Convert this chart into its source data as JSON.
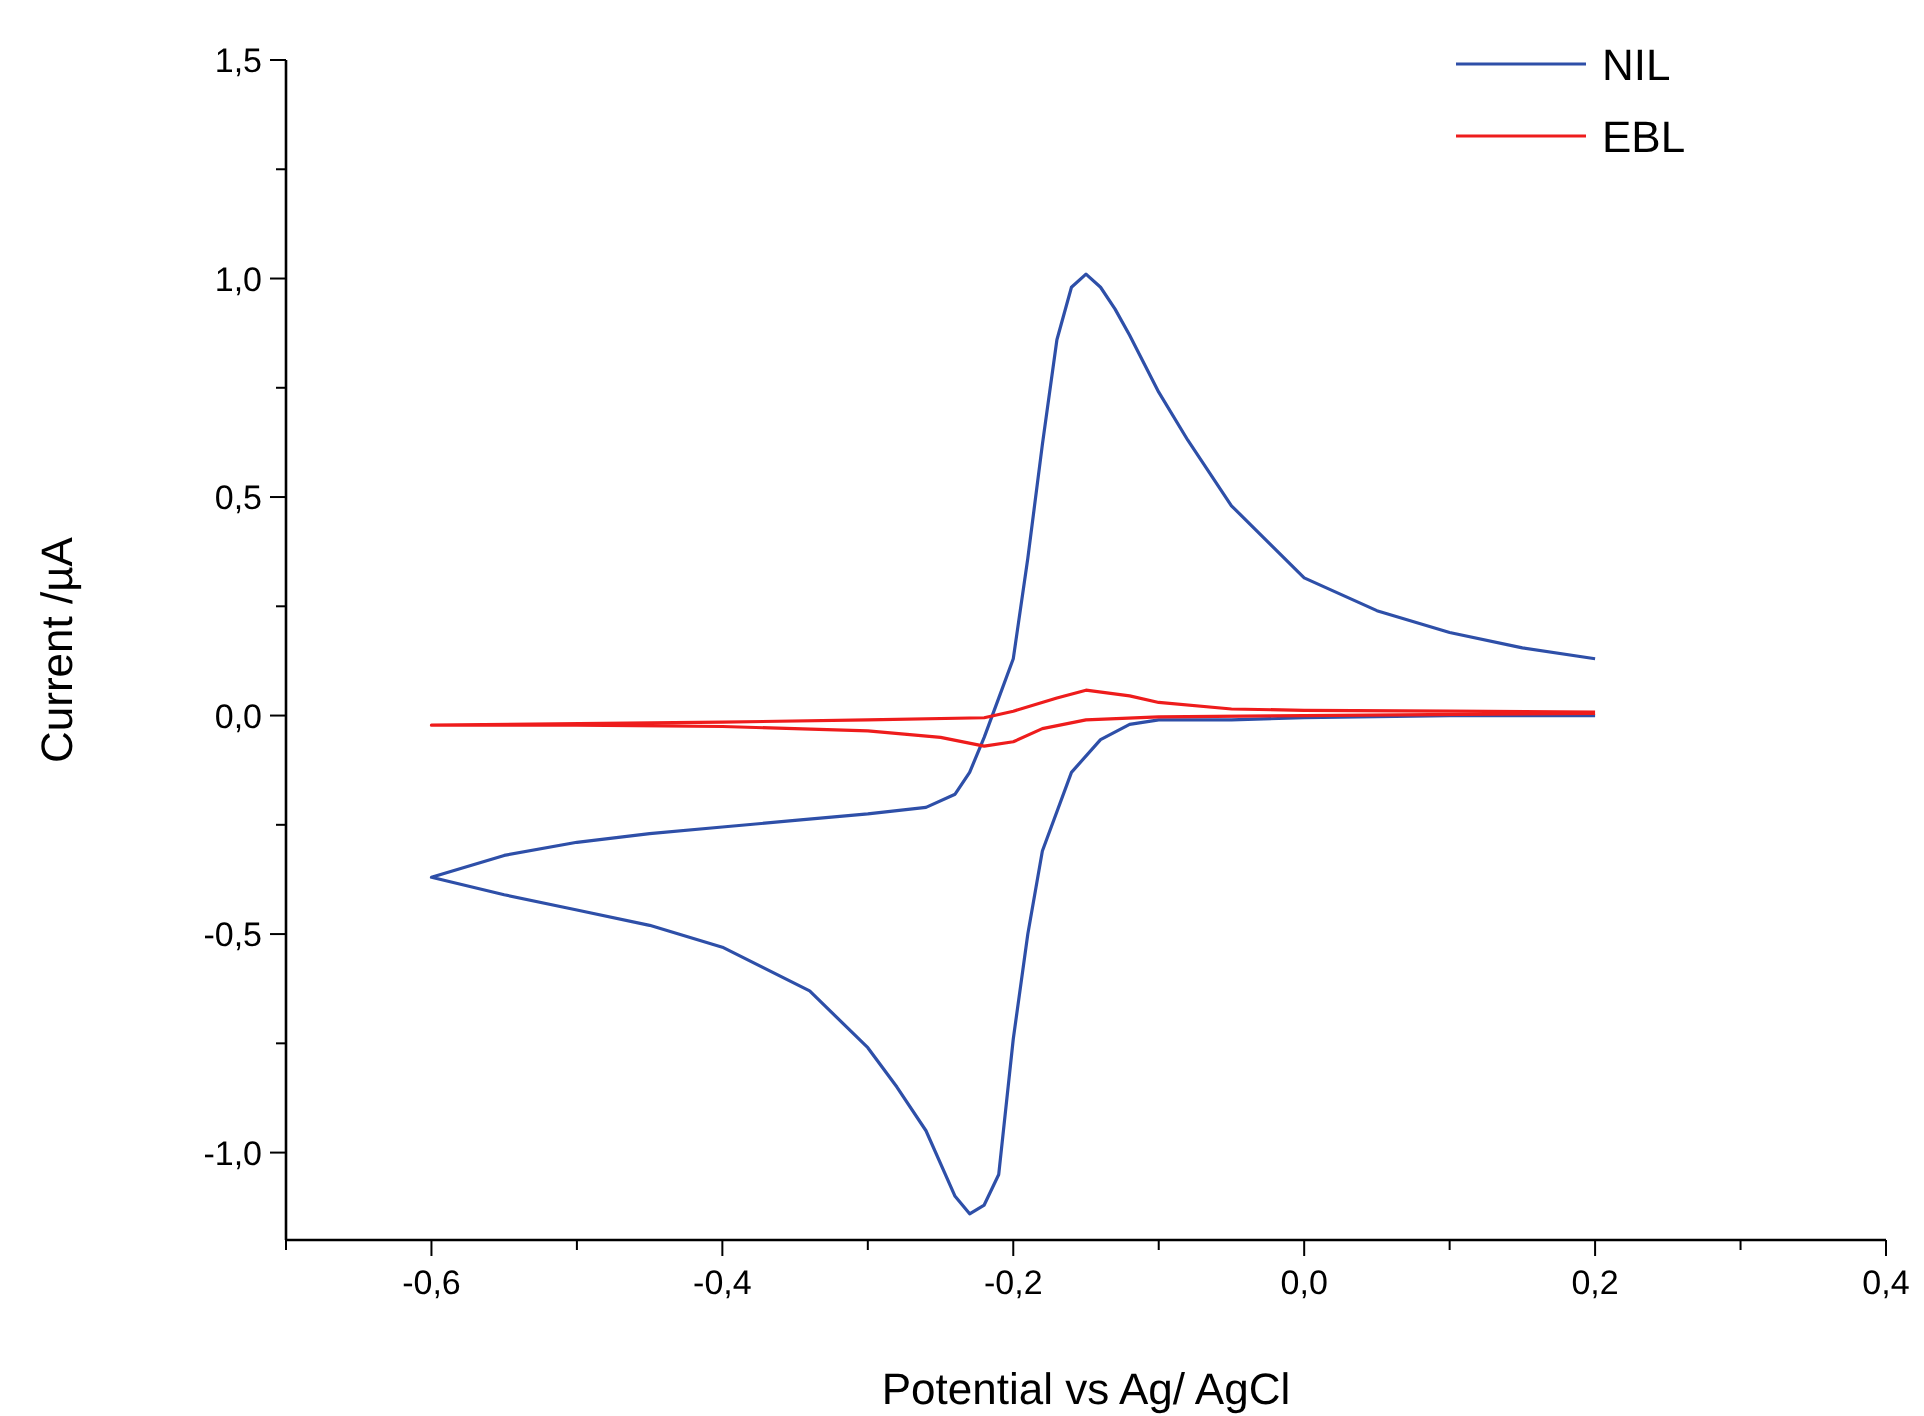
{
  "chart_data": {
    "type": "line",
    "xlabel": "Potential vs Ag/ AgCl",
    "ylabel": "Current /µA",
    "xlim": [
      -0.7,
      0.4
    ],
    "ylim": [
      -1.2,
      1.5
    ],
    "xticks": [
      {
        "value": -0.7,
        "label": null
      },
      {
        "value": -0.6,
        "label": "-0,6"
      },
      {
        "value": -0.5,
        "label": null
      },
      {
        "value": -0.4,
        "label": "-0,4"
      },
      {
        "value": -0.3,
        "label": null
      },
      {
        "value": -0.2,
        "label": "-0,2"
      },
      {
        "value": -0.1,
        "label": null
      },
      {
        "value": 0,
        "label": "0,0"
      },
      {
        "value": 0.1,
        "label": null
      },
      {
        "value": 0.2,
        "label": "0,2"
      },
      {
        "value": 0.3,
        "label": null
      },
      {
        "value": 0.4,
        "label": "0,4"
      }
    ],
    "yticks": [
      {
        "value": -1,
        "label": "-1,0"
      },
      {
        "value": -0.75,
        "label": null
      },
      {
        "value": -0.5,
        "label": "-0,5"
      },
      {
        "value": -0.25,
        "label": null
      },
      {
        "value": 0,
        "label": "0,0"
      },
      {
        "value": 0.25,
        "label": null
      },
      {
        "value": 0.5,
        "label": "0,5"
      },
      {
        "value": 0.75,
        "label": null
      },
      {
        "value": 1,
        "label": "1,0"
      },
      {
        "value": 1.25,
        "label": null
      },
      {
        "value": 1.5,
        "label": "1,5"
      }
    ],
    "grid": false,
    "legend": "top right",
    "marker": "none",
    "line_style": "solid",
    "series": [
      {
        "name": "NIL",
        "color": "#2e4fa8",
        "x": [
          0.2,
          0.1,
          0.0,
          -0.05,
          -0.1,
          -0.12,
          -0.14,
          -0.16,
          -0.18,
          -0.19,
          -0.2,
          -0.21,
          -0.22,
          -0.23,
          -0.24,
          -0.26,
          -0.28,
          -0.3,
          -0.34,
          -0.4,
          -0.45,
          -0.5,
          -0.55,
          -0.6,
          -0.55,
          -0.5,
          -0.45,
          -0.4,
          -0.35,
          -0.3,
          -0.26,
          -0.24,
          -0.23,
          -0.22,
          -0.21,
          -0.2,
          -0.19,
          -0.18,
          -0.17,
          -0.16,
          -0.15,
          -0.14,
          -0.13,
          -0.12,
          -0.1,
          -0.08,
          -0.05,
          0.0,
          0.05,
          0.1,
          0.15,
          0.2
        ],
        "values": [
          0.0,
          0.0,
          -0.005,
          -0.01,
          -0.01,
          -0.02,
          -0.055,
          -0.13,
          -0.31,
          -0.5,
          -0.74,
          -1.05,
          -1.12,
          -1.14,
          -1.1,
          -0.95,
          -0.85,
          -0.76,
          -0.63,
          -0.53,
          -0.48,
          -0.445,
          -0.41,
          -0.37,
          -0.32,
          -0.29,
          -0.27,
          -0.255,
          -0.24,
          -0.225,
          -0.21,
          -0.18,
          -0.13,
          -0.05,
          0.04,
          0.13,
          0.36,
          0.62,
          0.86,
          0.98,
          1.01,
          0.98,
          0.93,
          0.87,
          0.74,
          0.63,
          0.48,
          0.315,
          0.24,
          0.19,
          0.155,
          0.13
        ]
      },
      {
        "name": "EBL",
        "color": "#ee1c1c",
        "x": [
          0.2,
          0.0,
          -0.1,
          -0.15,
          -0.18,
          -0.2,
          -0.22,
          -0.25,
          -0.3,
          -0.4,
          -0.5,
          -0.6,
          -0.4,
          -0.3,
          -0.22,
          -0.2,
          -0.17,
          -0.15,
          -0.12,
          -0.1,
          -0.05,
          0.0,
          0.1,
          0.2
        ],
        "values": [
          0.005,
          0.0,
          -0.003,
          -0.01,
          -0.03,
          -0.06,
          -0.07,
          -0.05,
          -0.035,
          -0.025,
          -0.022,
          -0.022,
          -0.015,
          -0.01,
          -0.005,
          0.01,
          0.04,
          0.058,
          0.045,
          0.03,
          0.015,
          0.012,
          0.01,
          0.008
        ]
      }
    ]
  }
}
